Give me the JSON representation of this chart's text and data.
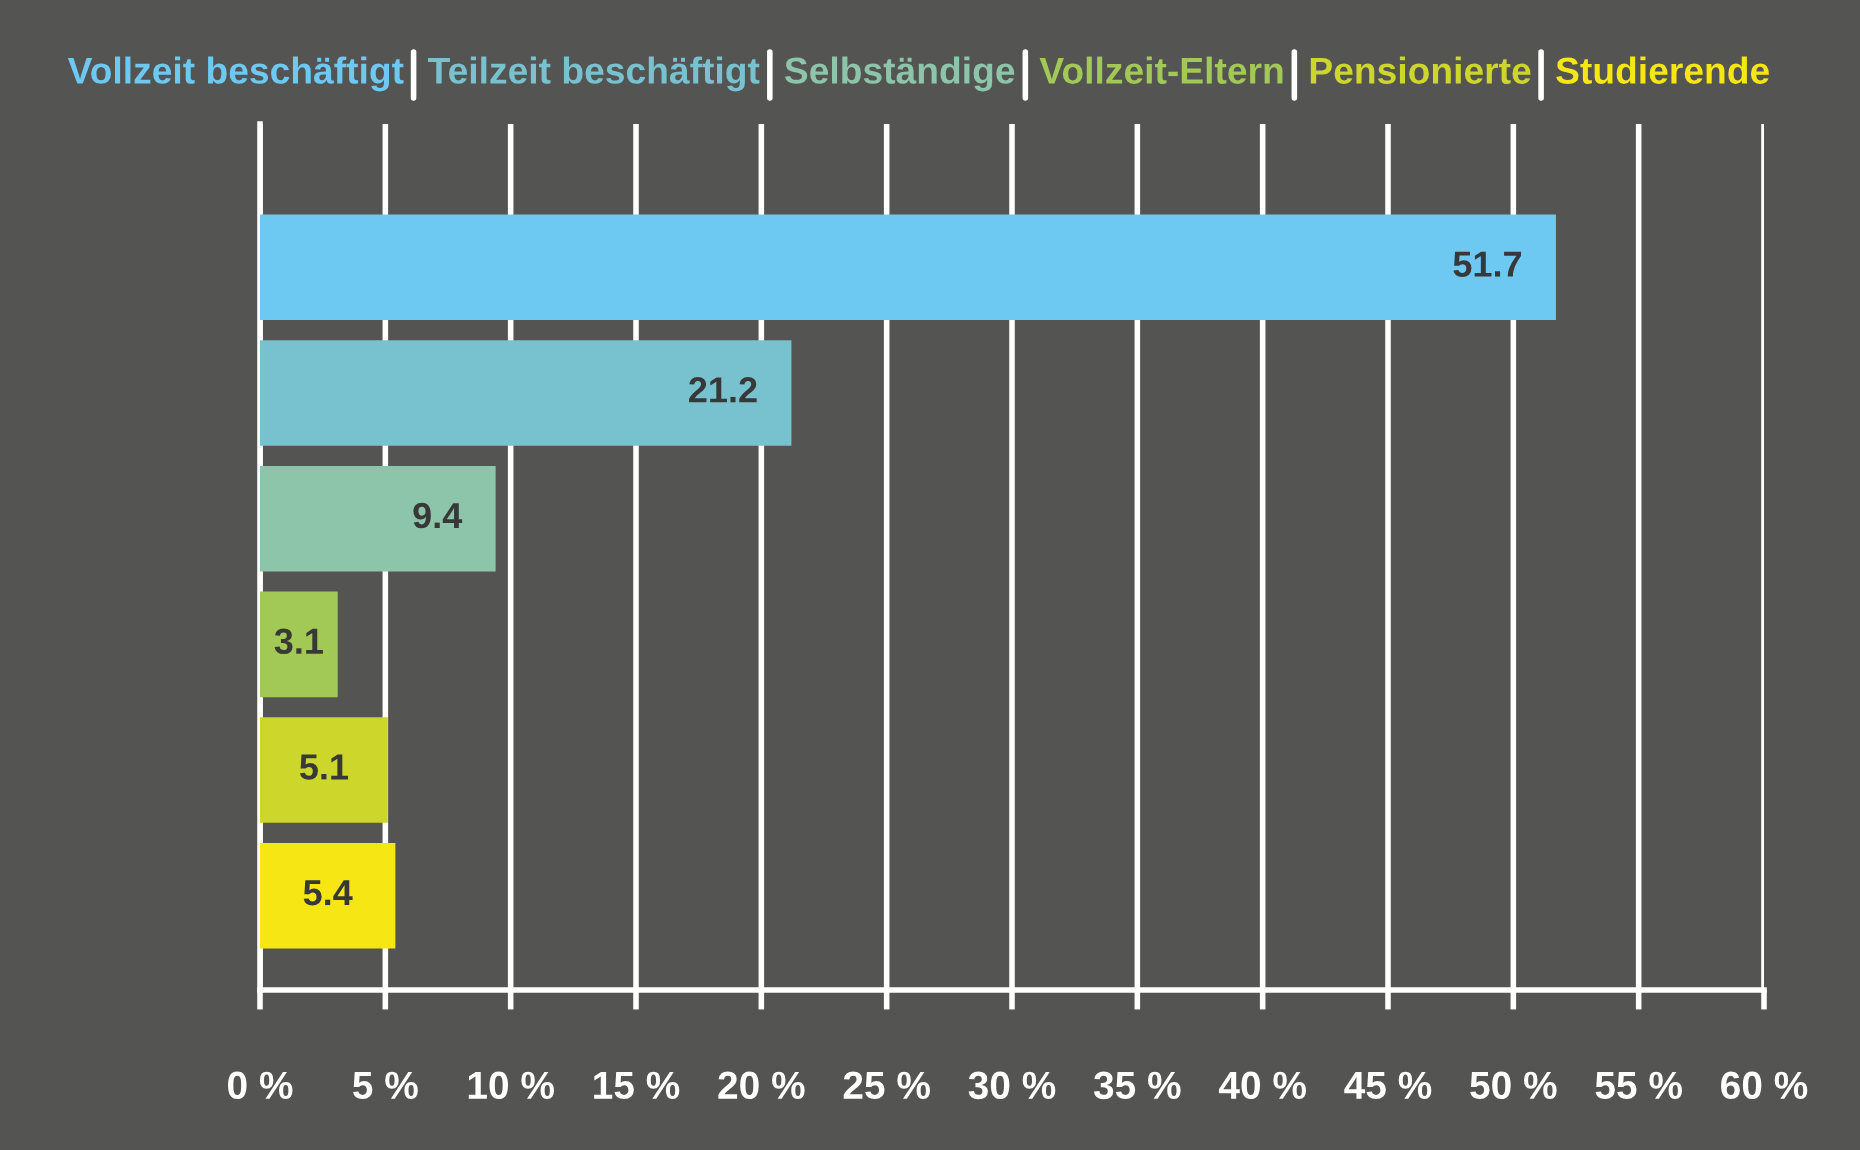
{
  "chart_data": {
    "type": "bar",
    "orientation": "horizontal",
    "categories": [
      null,
      null,
      null,
      null,
      null,
      null
    ],
    "series": [
      {
        "name": "Vollzeit beschäftigt",
        "color": "#6dc9f2",
        "values": [
          51.7,
          null,
          null,
          null,
          null,
          null
        ]
      },
      {
        "name": "Teilzeit beschäftigt",
        "color": "#78c2cf",
        "values": [
          null,
          21.2,
          null,
          null,
          null,
          null
        ]
      },
      {
        "name": "Selbständige",
        "color": "#8cc5a9",
        "values": [
          null,
          null,
          9.4,
          null,
          null,
          null
        ]
      },
      {
        "name": "Vollzeit-Eltern",
        "color": "#a2c855",
        "values": [
          null,
          null,
          null,
          3.1,
          null,
          null
        ]
      },
      {
        "name": "Pensionierte",
        "color": "#cdd62b",
        "values": [
          null,
          null,
          null,
          null,
          5.1,
          null
        ]
      },
      {
        "name": "Studierende",
        "color": "#f5e614",
        "values": [
          null,
          null,
          null,
          null,
          null,
          5.4
        ]
      }
    ],
    "xlim": [
      0,
      60
    ],
    "xticks": [
      {
        "value": 0,
        "label": "0 %"
      },
      {
        "value": 5,
        "label": "5 %"
      },
      {
        "value": 10,
        "label": "10 %"
      },
      {
        "value": 15,
        "label": "15 %"
      },
      {
        "value": 20,
        "label": "20 %"
      },
      {
        "value": 25,
        "label": "25 %"
      },
      {
        "value": 30,
        "label": "30 %"
      },
      {
        "value": 35,
        "label": "35 %"
      },
      {
        "value": 40,
        "label": "40 %"
      },
      {
        "value": 45,
        "label": "45 %"
      },
      {
        "value": 50,
        "label": "50 %"
      },
      {
        "value": 55,
        "label": "55 %"
      },
      {
        "value": 60,
        "label": "60 %"
      }
    ],
    "grid": "x",
    "legend": "top",
    "tick_labels": "x",
    "data_labels": true
  }
}
